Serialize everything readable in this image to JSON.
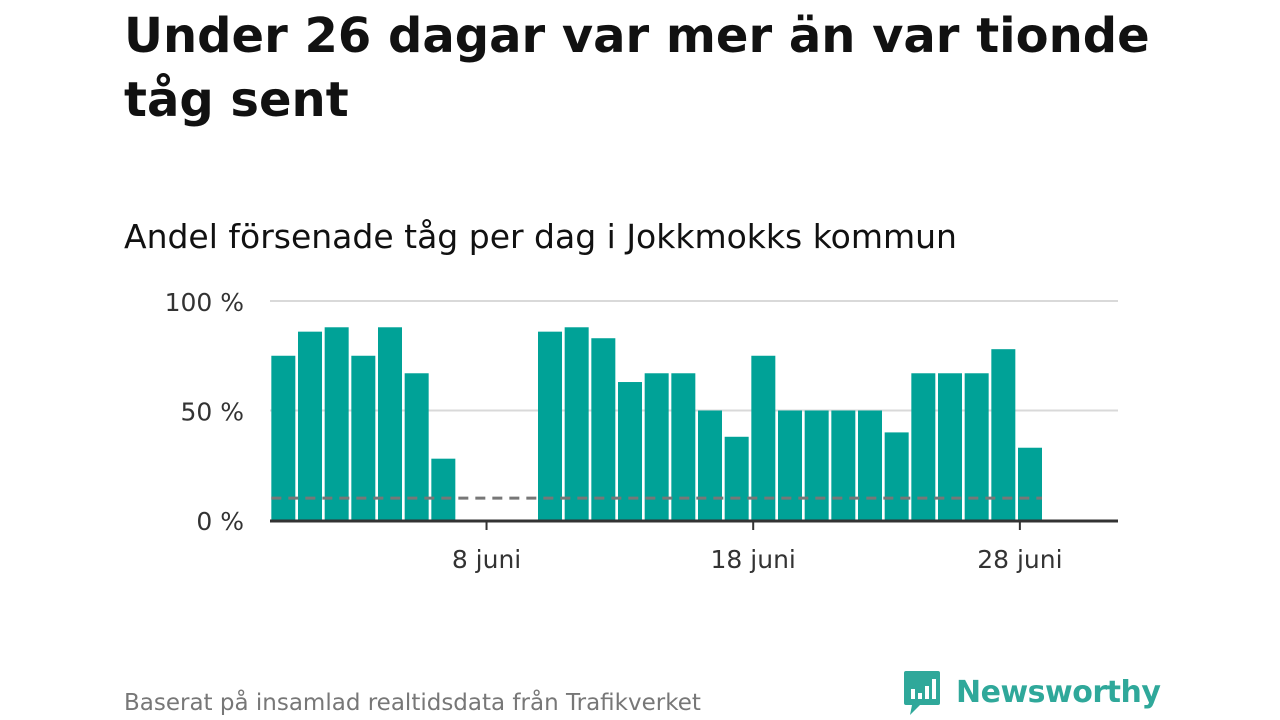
{
  "headline": "Under 26 dagar var mer än var tionde tåg sent",
  "subtitle": "Andel försenade tåg per dag i Jokkmokks kommun",
  "source": "Baserat på insamlad realtidsdata från Trafikverket",
  "brand": {
    "name": "Newsworthy",
    "icon": "newsworthy-logo-icon",
    "color": "#2fa89a"
  },
  "chart_data": {
    "type": "bar",
    "x_unit": "date (June)",
    "x": [
      1,
      2,
      3,
      4,
      5,
      6,
      7,
      8,
      9,
      10,
      11,
      12,
      13,
      14,
      15,
      16,
      17,
      18,
      19,
      20,
      21,
      22,
      23,
      24,
      25,
      26,
      27,
      28,
      29
    ],
    "values": [
      75,
      86,
      88,
      75,
      88,
      67,
      28,
      null,
      null,
      null,
      86,
      88,
      83,
      63,
      67,
      67,
      50,
      38,
      75,
      50,
      50,
      50,
      50,
      40,
      67,
      67,
      67,
      78,
      33
    ],
    "ylim": [
      0,
      100
    ],
    "y_ticks": [
      "0 %",
      "50 %",
      "100 %"
    ],
    "y_tick_values": [
      0,
      50,
      100
    ],
    "x_ticks": [
      "8 juni",
      "18 juni",
      "28 juni"
    ],
    "x_tick_values": [
      8,
      18,
      28
    ],
    "reference_line": {
      "value": 10,
      "style": "dashed"
    },
    "bar_color": "#00a297",
    "grid": true,
    "xlabel": "",
    "ylabel": ""
  }
}
